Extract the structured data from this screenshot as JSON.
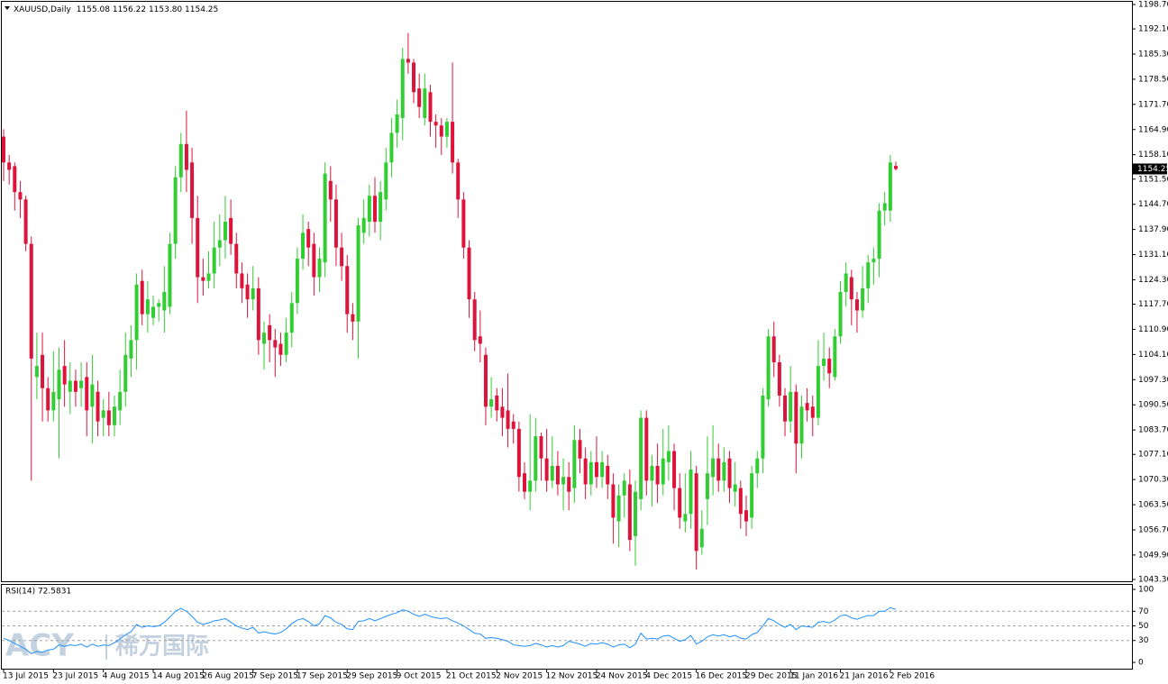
{
  "chart_data": [
    {
      "type": "candlestick",
      "title": "XAUUSD,Daily",
      "subtitle": "1155.08 1156.22 1153.80 1154.25",
      "up_color": "#32cd32",
      "down_color": "#dc143c",
      "categories": [
        "13 Jul 2015",
        null,
        null,
        null,
        null,
        null,
        null,
        null,
        null,
        "23 Jul 2015",
        null,
        null,
        null,
        null,
        null,
        null,
        null,
        null,
        "4 Aug 2015",
        null,
        null,
        null,
        null,
        null,
        null,
        null,
        null,
        "14 Aug 2015",
        null,
        null,
        null,
        null,
        null,
        null,
        null,
        null,
        "26 Aug 2015",
        null,
        null,
        null,
        null,
        null,
        null,
        null,
        null,
        "7 Sep 2015",
        null,
        null,
        null,
        null,
        null,
        null,
        null,
        "17 Sep 2015",
        null,
        null,
        null,
        null,
        null,
        null,
        null,
        null,
        "29 Sep 2015",
        null,
        null,
        null,
        null,
        null,
        null,
        null,
        null,
        "9 Oct 2015",
        null,
        null,
        null,
        null,
        null,
        null,
        null,
        null,
        "21 Oct 2015",
        null,
        null,
        null,
        null,
        null,
        null,
        null,
        null,
        "2 Nov 2015",
        null,
        null,
        null,
        null,
        null,
        null,
        null,
        null,
        "12 Nov 2015",
        null,
        null,
        null,
        null,
        null,
        null,
        null,
        null,
        "24 Nov 2015",
        null,
        null,
        null,
        null,
        null,
        null,
        null,
        null,
        "4 Dec 2015",
        null,
        null,
        null,
        null,
        null,
        null,
        null,
        null,
        "16 Dec 2015",
        null,
        null,
        null,
        null,
        null,
        null,
        null,
        null,
        "29 Dec 2015",
        null,
        null,
        null,
        null,
        null,
        null,
        null,
        "11 Jan 2016",
        null,
        null,
        null,
        null,
        null,
        null,
        null,
        null,
        "21 Jan 2016",
        null,
        null,
        null,
        null,
        null,
        null,
        null,
        null,
        "2 Feb 2016",
        null
      ],
      "open": [
        1163,
        1156,
        1155,
        1148,
        1146,
        1134,
        1098,
        1104,
        1095,
        1089,
        1092,
        1101,
        1094,
        1097,
        1095,
        1098,
        1090,
        1094,
        1087,
        1089,
        1085,
        1089,
        1094,
        1103,
        1108,
        1124,
        1115,
        1114,
        1117,
        1116,
        1117,
        1134,
        1152,
        1161,
        1156,
        1141,
        1125,
        1124,
        1126,
        1133,
        1135,
        1141,
        1134,
        1126,
        1123,
        1119,
        1122,
        1107,
        1112,
        1108,
        1107,
        1104,
        1110,
        1118,
        1130,
        1138,
        1134,
        1125,
        1129,
        1151,
        1146,
        1133,
        1128,
        1115,
        1113,
        1137,
        1140,
        1147,
        1140,
        1146,
        1156,
        1164,
        1168,
        1184,
        1183,
        1176,
        1168,
        1175,
        1167,
        1166,
        1163,
        1167,
        1156,
        1146,
        1133,
        1119,
        1109,
        1104,
        1090,
        1093,
        1090,
        1089,
        1086,
        1084,
        1072,
        1067,
        1070,
        1082,
        1076,
        1070,
        1074,
        1069,
        1071,
        1068,
        1081,
        1076,
        1069,
        1075,
        1071,
        1074,
        1069,
        1059,
        1066,
        1069,
        1055,
        1065,
        1087,
        1070,
        1074,
        1069,
        1075,
        1078,
        1068,
        1059,
        1061,
        1072,
        1052,
        1065,
        1071,
        1076,
        1070,
        1076,
        1067,
        1068,
        1062,
        1060,
        1072,
        1076,
        1092,
        1109,
        1102,
        1093,
        1086,
        1094,
        1080,
        1091,
        1090,
        1087,
        1101,
        1103,
        1098,
        1109,
        1121,
        1125,
        1119,
        1116,
        1122,
        1129,
        1130,
        1143,
        1143,
        1155.08
      ],
      "high": [
        1165,
        1158,
        1156,
        1151,
        1147,
        1136,
        1110,
        1110,
        1098,
        1105,
        1106,
        1108,
        1102,
        1100,
        1102,
        1102,
        1104,
        1097,
        1092,
        1094,
        1093,
        1100,
        1110,
        1112,
        1126,
        1127,
        1124,
        1120,
        1119,
        1128,
        1137,
        1155,
        1164,
        1170,
        1160,
        1147,
        1130,
        1132,
        1140,
        1142,
        1147,
        1146,
        1137,
        1129,
        1126,
        1128,
        1125,
        1113,
        1115,
        1111,
        1110,
        1114,
        1121,
        1133,
        1142,
        1140,
        1137,
        1133,
        1156,
        1155,
        1150,
        1137,
        1131,
        1118,
        1141,
        1146,
        1150,
        1152,
        1151,
        1160,
        1168,
        1173,
        1187,
        1191,
        1184,
        1180,
        1180,
        1177,
        1169,
        1168,
        1168,
        1183,
        1157,
        1148,
        1135,
        1121,
        1116,
        1106,
        1098,
        1095,
        1095,
        1099,
        1088,
        1086,
        1075,
        1088,
        1087,
        1083,
        1084,
        1082,
        1078,
        1076,
        1075,
        1085,
        1084,
        1079,
        1078,
        1082,
        1078,
        1077,
        1072,
        1069,
        1072,
        1073,
        1070,
        1089,
        1089,
        1077,
        1080,
        1084,
        1085,
        1080,
        1072,
        1072,
        1078,
        1074,
        1062,
        1082,
        1085,
        1080,
        1079,
        1078,
        1075,
        1070,
        1066,
        1074,
        1078,
        1095,
        1111,
        1113,
        1104,
        1095,
        1101,
        1096,
        1093,
        1095,
        1093,
        1108,
        1110,
        1106,
        1111,
        1124,
        1129,
        1127,
        1121,
        1128,
        1131,
        1133,
        1145,
        1148,
        1158,
        1156.22
      ],
      "low": [
        1151,
        1150,
        1143,
        1141,
        1132,
        1070,
        1092,
        1086,
        1086,
        1086,
        1076,
        1090,
        1088,
        1090,
        1090,
        1082,
        1080,
        1082,
        1082,
        1082,
        1082,
        1085,
        1090,
        1098,
        1100,
        1112,
        1110,
        1112,
        1113,
        1110,
        1115,
        1130,
        1148,
        1148,
        1134,
        1118,
        1120,
        1122,
        1122,
        1128,
        1130,
        1131,
        1122,
        1118,
        1114,
        1116,
        1104,
        1100,
        1102,
        1098,
        1101,
        1102,
        1106,
        1115,
        1127,
        1128,
        1120,
        1121,
        1125,
        1140,
        1128,
        1124,
        1110,
        1108,
        1103,
        1134,
        1136,
        1137,
        1135,
        1143,
        1152,
        1160,
        1162,
        1180,
        1172,
        1168,
        1166,
        1163,
        1160,
        1158,
        1160,
        1153,
        1141,
        1130,
        1114,
        1105,
        1102,
        1085,
        1087,
        1086,
        1082,
        1079,
        1080,
        1067,
        1065,
        1062,
        1067,
        1070,
        1067,
        1068,
        1066,
        1062,
        1062,
        1064,
        1072,
        1065,
        1066,
        1068,
        1068,
        1065,
        1053,
        1052,
        1060,
        1051,
        1047,
        1062,
        1066,
        1063,
        1064,
        1066,
        1070,
        1062,
        1057,
        1056,
        1057,
        1046,
        1050,
        1058,
        1066,
        1067,
        1067,
        1064,
        1063,
        1057,
        1055,
        1057,
        1068,
        1072,
        1090,
        1098,
        1090,
        1082,
        1083,
        1072,
        1076,
        1086,
        1082,
        1085,
        1097,
        1095,
        1097,
        1107,
        1117,
        1112,
        1110,
        1114,
        1118,
        1123,
        1125,
        1139,
        1140,
        1153.8
      ],
      "close": [
        1156,
        1154,
        1148,
        1146,
        1134,
        1103,
        1101,
        1095,
        1089,
        1094,
        1100,
        1096,
        1097,
        1094,
        1097,
        1089,
        1096,
        1086,
        1089,
        1085,
        1090,
        1094,
        1104,
        1108,
        1123,
        1115,
        1119,
        1117,
        1118,
        1121,
        1134,
        1152,
        1161,
        1154,
        1141,
        1125,
        1124,
        1126,
        1133,
        1135,
        1140,
        1134,
        1126,
        1122,
        1119,
        1122,
        1108,
        1110,
        1108,
        1106,
        1104,
        1110,
        1118,
        1130,
        1137,
        1133,
        1125,
        1130,
        1153,
        1146,
        1133,
        1128,
        1115,
        1113,
        1139,
        1141,
        1147,
        1140,
        1148,
        1156,
        1164,
        1169,
        1184,
        1183,
        1175,
        1171,
        1176,
        1167,
        1166,
        1163,
        1167,
        1156,
        1146,
        1133,
        1119,
        1108,
        1107,
        1090,
        1092,
        1089,
        1087,
        1084,
        1084,
        1071,
        1067,
        1070,
        1082,
        1076,
        1070,
        1074,
        1069,
        1071,
        1067,
        1081,
        1076,
        1069,
        1075,
        1071,
        1075,
        1069,
        1060,
        1066,
        1070,
        1054,
        1067,
        1087,
        1070,
        1074,
        1069,
        1076,
        1078,
        1068,
        1060,
        1061,
        1073,
        1051,
        1057,
        1072,
        1076,
        1070,
        1075,
        1068,
        1069,
        1061,
        1059,
        1072,
        1076,
        1093,
        1109,
        1102,
        1093,
        1086,
        1094,
        1080,
        1090,
        1089,
        1087,
        1101,
        1103,
        1099,
        1109,
        1121,
        1126,
        1119,
        1116,
        1122,
        1129,
        1130,
        1143,
        1145,
        1156,
        1154.25
      ],
      "ylim": [
        1042.81,
        1199.67
      ],
      "yticks": [
        {
          "value": 1198.7,
          "label": "1198.70"
        },
        {
          "value": 1192.1,
          "label": "1192.10"
        },
        {
          "value": 1185.3,
          "label": "1185.30"
        },
        {
          "value": 1178.5,
          "label": "1178.50"
        },
        {
          "value": 1171.7,
          "label": "1171.70"
        },
        {
          "value": 1164.9,
          "label": "1164.90"
        },
        {
          "value": 1158.1,
          "label": "1158.10"
        },
        {
          "value": 1151.5,
          "label": "1151.50"
        },
        {
          "value": 1144.7,
          "label": "1144.70"
        },
        {
          "value": 1137.9,
          "label": "1137.90"
        },
        {
          "value": 1131.1,
          "label": "1131.10"
        },
        {
          "value": 1124.3,
          "label": "1124.30"
        },
        {
          "value": 1117.7,
          "label": "1117.70"
        },
        {
          "value": 1110.9,
          "label": "1110.90"
        },
        {
          "value": 1104.1,
          "label": "1104.10"
        },
        {
          "value": 1097.3,
          "label": "1097.30"
        },
        {
          "value": 1090.5,
          "label": "1090.50"
        },
        {
          "value": 1083.7,
          "label": "1083.70"
        },
        {
          "value": 1077.1,
          "label": "1077.10"
        },
        {
          "value": 1070.3,
          "label": "1070.30"
        },
        {
          "value": 1063.5,
          "label": "1063.50"
        },
        {
          "value": 1056.7,
          "label": "1056.70"
        },
        {
          "value": 1049.9,
          "label": "1049.90"
        },
        {
          "value": 1043.3,
          "label": "1043.30"
        }
      ]
    },
    {
      "type": "line",
      "title": "RSI(14) 72.5831",
      "color": "#1e90ff",
      "values": [
        33,
        30,
        26,
        22,
        18,
        12,
        15,
        14,
        17,
        18,
        24,
        22,
        24,
        23,
        25,
        21,
        25,
        22,
        24,
        23,
        27,
        32,
        38,
        42,
        52,
        48,
        50,
        49,
        50,
        55,
        62,
        70,
        74,
        70,
        63,
        55,
        52,
        54,
        57,
        58,
        60,
        55,
        50,
        47,
        45,
        48,
        40,
        42,
        40,
        39,
        41,
        46,
        53,
        58,
        60,
        56,
        50,
        53,
        64,
        61,
        55,
        52,
        46,
        45,
        56,
        57,
        60,
        57,
        60,
        63,
        66,
        68,
        72,
        70,
        66,
        63,
        66,
        63,
        61,
        60,
        61,
        57,
        54,
        50,
        45,
        40,
        39,
        33,
        34,
        33,
        31,
        29,
        24,
        23,
        22,
        23,
        26,
        24,
        21,
        23,
        21,
        23,
        29,
        27,
        25,
        22,
        26,
        25,
        27,
        25,
        21,
        24,
        25,
        20,
        25,
        40,
        32,
        33,
        32,
        36,
        37,
        33,
        29,
        31,
        37,
        25,
        29,
        35,
        38,
        36,
        38,
        35,
        37,
        33,
        32,
        38,
        41,
        50,
        60,
        57,
        52,
        48,
        52,
        45,
        50,
        49,
        48,
        55,
        56,
        54,
        58,
        64,
        65,
        61,
        59,
        62,
        64,
        64,
        70,
        70,
        75,
        72.5831
      ],
      "ylim": [
        -8.6,
        107.4
      ],
      "yticks": [
        0,
        30,
        50,
        70,
        100
      ]
    }
  ],
  "watermark": {
    "brand": "ACY",
    "name": "稀万国际"
  }
}
